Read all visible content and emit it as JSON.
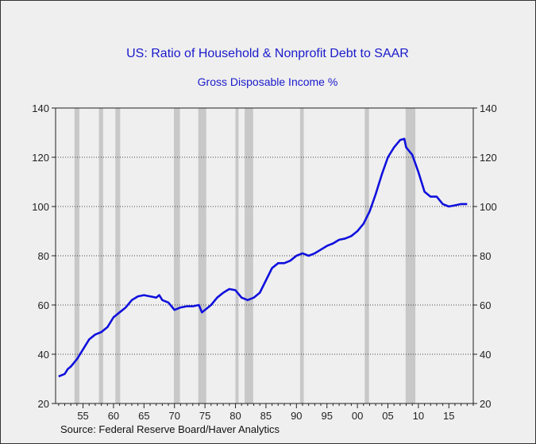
{
  "chart_data": {
    "type": "line",
    "title": "US: Ratio of Household & Nonprofit Debt to SAAR",
    "subtitle": "Gross Disposable Income %",
    "source": "Source:  Federal Reserve Board/Haver Analytics",
    "xlabel": "",
    "ylabel": "",
    "xlim": [
      1950.5,
      2019.0
    ],
    "ylim": [
      20,
      140
    ],
    "y_ticks": [
      20,
      40,
      60,
      80,
      100,
      120,
      140
    ],
    "x_tick_labels": [
      "55",
      "60",
      "65",
      "70",
      "75",
      "80",
      "85",
      "90",
      "95",
      "00",
      "05",
      "10",
      "15"
    ],
    "x_tick_years": [
      1955,
      1960,
      1965,
      1970,
      1975,
      1980,
      1985,
      1990,
      1995,
      2000,
      2005,
      2010,
      2015
    ],
    "grid": "horizontal dotted",
    "line_color": "#1010dd",
    "recession_color": "#c8c8c8",
    "recessions": [
      [
        1953.6,
        1954.4
      ],
      [
        1957.6,
        1958.3
      ],
      [
        1960.3,
        1961.1
      ],
      [
        1969.9,
        1970.9
      ],
      [
        1973.9,
        1975.2
      ],
      [
        1980.0,
        1980.5
      ],
      [
        1981.5,
        1982.9
      ],
      [
        1990.6,
        1991.2
      ],
      [
        2001.2,
        2001.9
      ],
      [
        2007.9,
        2009.5
      ]
    ],
    "series": [
      {
        "x": [
          1951.0,
          1952.0,
          1952.5,
          1953.0,
          1954.0,
          1955.0,
          1956.0,
          1957.0,
          1958.0,
          1959.0,
          1960.0,
          1961.0,
          1962.0,
          1963.0,
          1964.0,
          1965.0,
          1966.0,
          1967.0,
          1967.5,
          1968.0,
          1969.0,
          1970.0,
          1971.0,
          1972.0,
          1973.0,
          1974.0,
          1974.5,
          1975.0,
          1976.0,
          1977.0,
          1978.0,
          1979.0,
          1980.0,
          1981.0,
          1982.0,
          1983.0,
          1984.0,
          1985.0,
          1986.0,
          1987.0,
          1988.0,
          1989.0,
          1990.0,
          1991.0,
          1992.0,
          1993.0,
          1994.0,
          1995.0,
          1996.0,
          1997.0,
          1998.0,
          1999.0,
          2000.0,
          2001.0,
          2002.0,
          2003.0,
          2004.0,
          2005.0,
          2006.0,
          2007.0,
          2007.7,
          2008.0,
          2009.0,
          2010.0,
          2011.0,
          2012.0,
          2013.0,
          2014.0,
          2015.0,
          2016.0,
          2017.0,
          2018.0
        ],
        "values": [
          31,
          32,
          34,
          35,
          38,
          42,
          46,
          48,
          49,
          51,
          55,
          57,
          59,
          62,
          63.5,
          64,
          63.5,
          63,
          64,
          62,
          61,
          58,
          59,
          59.5,
          59.5,
          60,
          57,
          58,
          60,
          63,
          65,
          66.5,
          66,
          63,
          62,
          63,
          65,
          70,
          75,
          77,
          77,
          78,
          80,
          81,
          80,
          81,
          82.5,
          84,
          85,
          86.5,
          87,
          88,
          90,
          93,
          98,
          105,
          113,
          120,
          124,
          127,
          127.5,
          124,
          121,
          114,
          106,
          104,
          104,
          101,
          100,
          100.5,
          101,
          101
        ]
      }
    ]
  }
}
